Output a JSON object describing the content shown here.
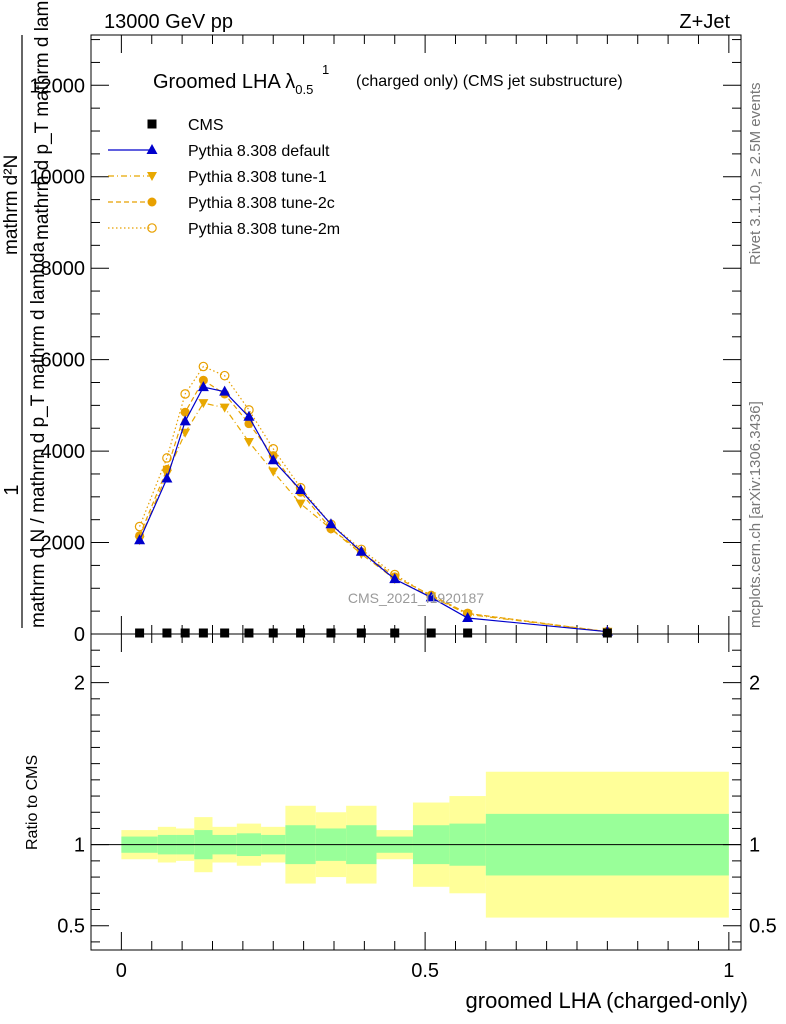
{
  "header": {
    "energy_label": "13000 GeV pp",
    "process_label": "Z+Jet"
  },
  "side_labels": {
    "rivet": "Rivet 3.1.10, ≥ 2.5M events",
    "mcplots": "mcplots.cern.ch [arXiv:1306.3436]"
  },
  "watermark": "CMS_2021_I1920187",
  "chart_data": [
    {
      "type": "line",
      "title": "Groomed LHA λ",
      "title_sup": "1",
      "title_sub": "0.5",
      "title_suffix": "(charged only) (CMS jet substructure)",
      "ylabel_main": "mathrm d N / mathrm d p_T  mathrm d lambda",
      "ylabel_frac_num": "mathrm d²N",
      "ylabel_frac_den": "mathrm d p_T mathrm d lambda",
      "ylabel_one": "1",
      "ylabel_frac_left": "mathrm d N / mathrm d p",
      "xlabel": "",
      "xlim": [
        -0.05,
        1.02
      ],
      "ylim": [
        0,
        13100
      ],
      "yticks": [
        0,
        2000,
        4000,
        6000,
        8000,
        10000,
        12000
      ],
      "ytick_labels": [
        "0",
        "2000",
        "4000",
        "6000",
        "8000",
        "10000",
        "12000"
      ],
      "legend_position": "top-left",
      "x": [
        0.03,
        0.075,
        0.105,
        0.135,
        0.17,
        0.21,
        0.25,
        0.295,
        0.345,
        0.395,
        0.45,
        0.51,
        0.57,
        0.8
      ],
      "series": [
        {
          "name": "CMS",
          "color": "#000000",
          "marker": "square",
          "line": "none",
          "values": [
            0,
            0,
            0,
            0,
            0,
            0,
            0,
            0,
            0,
            0,
            0,
            0,
            0,
            0
          ]
        },
        {
          "name": "Pythia 8.308 default",
          "color": "#0000cc",
          "marker": "triangle-up",
          "line": "solid",
          "values": [
            2050,
            3400,
            4650,
            5400,
            5300,
            4750,
            3800,
            3150,
            2400,
            1800,
            1200,
            800,
            350,
            50
          ]
        },
        {
          "name": "Pythia 8.308 tune-1",
          "color": "#e8a800",
          "marker": "triangle-down",
          "line": "dashdot",
          "values": [
            2050,
            3500,
            4400,
            5050,
            4950,
            4200,
            3550,
            2850,
            2300,
            1750,
            1200,
            820,
            430,
            50
          ]
        },
        {
          "name": "Pythia 8.308 tune-2c",
          "color": "#e8a000",
          "marker": "circle-filled",
          "line": "dashed",
          "values": [
            2150,
            3600,
            4850,
            5550,
            5250,
            4600,
            3900,
            3100,
            2300,
            1800,
            1250,
            850,
            450,
            50
          ]
        },
        {
          "name": "Pythia 8.308 tune-2m",
          "color": "#e8a000",
          "marker": "circle-open",
          "line": "dotted",
          "values": [
            2350,
            3850,
            5250,
            5850,
            5650,
            4900,
            4050,
            3200,
            2400,
            1850,
            1300,
            820,
            450,
            50
          ]
        }
      ]
    },
    {
      "type": "area",
      "ylabel": "Ratio to CMS",
      "xlabel": "groomed LHA (charged-only)",
      "xlim": [
        -0.05,
        1.02
      ],
      "ylim": [
        0.35,
        2.3
      ],
      "yticks": [
        0.5,
        1,
        2
      ],
      "ytick_labels": [
        "0.5",
        "1",
        "2"
      ],
      "xticks": [
        0,
        0.5,
        1
      ],
      "xtick_labels": [
        "0",
        "0.5",
        "1"
      ],
      "bins": [
        {
          "x0": 0.0,
          "x1": 0.06,
          "green": [
            0.95,
            1.05
          ],
          "yellow": [
            0.91,
            1.09
          ]
        },
        {
          "x0": 0.06,
          "x1": 0.09,
          "green": [
            0.94,
            1.06
          ],
          "yellow": [
            0.89,
            1.11
          ]
        },
        {
          "x0": 0.09,
          "x1": 0.12,
          "green": [
            0.94,
            1.06
          ],
          "yellow": [
            0.9,
            1.1
          ]
        },
        {
          "x0": 0.12,
          "x1": 0.15,
          "green": [
            0.91,
            1.09
          ],
          "yellow": [
            0.83,
            1.17
          ]
        },
        {
          "x0": 0.15,
          "x1": 0.19,
          "green": [
            0.94,
            1.06
          ],
          "yellow": [
            0.89,
            1.11
          ]
        },
        {
          "x0": 0.19,
          "x1": 0.23,
          "green": [
            0.93,
            1.07
          ],
          "yellow": [
            0.87,
            1.13
          ]
        },
        {
          "x0": 0.23,
          "x1": 0.27,
          "green": [
            0.94,
            1.06
          ],
          "yellow": [
            0.89,
            1.11
          ]
        },
        {
          "x0": 0.27,
          "x1": 0.32,
          "green": [
            0.88,
            1.12
          ],
          "yellow": [
            0.76,
            1.24
          ]
        },
        {
          "x0": 0.32,
          "x1": 0.37,
          "green": [
            0.9,
            1.1
          ],
          "yellow": [
            0.8,
            1.2
          ]
        },
        {
          "x0": 0.37,
          "x1": 0.42,
          "green": [
            0.88,
            1.12
          ],
          "yellow": [
            0.76,
            1.24
          ]
        },
        {
          "x0": 0.42,
          "x1": 0.48,
          "green": [
            0.95,
            1.05
          ],
          "yellow": [
            0.91,
            1.09
          ]
        },
        {
          "x0": 0.48,
          "x1": 0.54,
          "green": [
            0.88,
            1.12
          ],
          "yellow": [
            0.74,
            1.26
          ]
        },
        {
          "x0": 0.54,
          "x1": 0.6,
          "green": [
            0.87,
            1.13
          ],
          "yellow": [
            0.7,
            1.3
          ]
        },
        {
          "x0": 0.6,
          "x1": 1.0,
          "green": [
            0.81,
            1.19
          ],
          "yellow": [
            0.55,
            1.45
          ]
        }
      ],
      "colors": {
        "green": "#99ff99",
        "yellow": "#ffff99",
        "reference": "#000000"
      }
    }
  ]
}
